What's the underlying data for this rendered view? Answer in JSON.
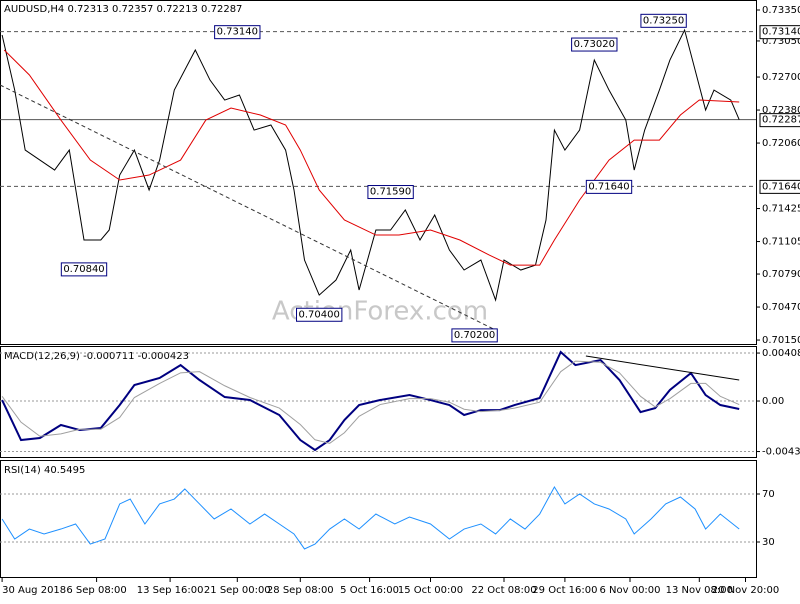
{
  "watermark": "ActionForex.com",
  "chart_data": [
    {
      "type": "line",
      "title": "AUDUSD,H4  0.72313 0.72357 0.72213 0.72287",
      "xlim": [
        0,
        360
      ],
      "ylim": [
        0.70102,
        0.73447
      ],
      "grid": false,
      "yticks": [
        {
          "value": 0.7335,
          "label": "0.73350"
        },
        {
          "value": 0.7305,
          "label": "0.73050"
        },
        {
          "value": 0.727,
          "label": "0.72700"
        },
        {
          "value": 0.7238,
          "label": "0.72380"
        },
        {
          "value": 0.7206,
          "label": "0.72060"
        },
        {
          "value": 0.71425,
          "label": "0.71425"
        },
        {
          "value": 0.71105,
          "label": "0.71105"
        },
        {
          "value": 0.7079,
          "label": "0.70790"
        },
        {
          "value": 0.7047,
          "label": "0.70470"
        },
        {
          "value": 0.7015,
          "label": "0.70150"
        }
      ],
      "series": [
        {
          "color": "#000000",
          "x": [
            1,
            7,
            12,
            19,
            26,
            33,
            40,
            48,
            52,
            57,
            64,
            71,
            76,
            83,
            93,
            100,
            107,
            114,
            121,
            129,
            136,
            140,
            145,
            152,
            160,
            167,
            171,
            179,
            186,
            193,
            200,
            207,
            214,
            221,
            229,
            236,
            240,
            248,
            255,
            260,
            264,
            269,
            276,
            283,
            290,
            298,
            302,
            307,
            314,
            319,
            326,
            331,
            336,
            340,
            348,
            352
          ],
          "values": [
            0.73108,
            0.72574,
            0.71992,
            0.71895,
            0.71798,
            0.71992,
            0.7112,
            0.7112,
            0.71217,
            0.7175,
            0.71992,
            0.71605,
            0.71895,
            0.72574,
            0.72962,
            0.72671,
            0.72477,
            0.72526,
            0.72186,
            0.72235,
            0.71992,
            0.71605,
            0.70926,
            0.70586,
            0.70732,
            0.71023,
            0.70635,
            0.71217,
            0.71217,
            0.71411,
            0.7112,
            0.71362,
            0.71023,
            0.70829,
            0.70926,
            0.70538,
            0.70926,
            0.70829,
            0.70877,
            0.71314,
            0.72186,
            0.71992,
            0.72186,
            0.72865,
            0.72574,
            0.72283,
            0.71798,
            0.72186,
            0.72574,
            0.72865,
            0.73156,
            0.72768,
            0.7238,
            0.72574,
            0.72477,
            0.72287
          ]
        },
        {
          "color": "#e00000",
          "x": [
            2,
            14,
            29,
            43,
            57,
            71,
            86,
            98,
            110,
            124,
            136,
            143,
            152,
            164,
            179,
            190,
            205,
            219,
            233,
            243,
            257,
            264,
            276,
            290,
            302,
            314,
            324,
            333,
            352
          ],
          "values": [
            0.72962,
            0.7272,
            0.72283,
            0.71895,
            0.71702,
            0.7175,
            0.71895,
            0.72283,
            0.724,
            0.72332,
            0.72235,
            0.71992,
            0.71605,
            0.71314,
            0.71168,
            0.71168,
            0.71217,
            0.7112,
            0.70974,
            0.70877,
            0.70877,
            0.7112,
            0.71508,
            0.71895,
            0.72089,
            0.72089,
            0.72332,
            0.72477,
            0.72458
          ]
        },
        {
          "color": "#333333",
          "style": "dashed",
          "x": [
            0,
            236
          ],
          "values": [
            0.72623,
            0.70247
          ]
        }
      ],
      "levels": [
        {
          "value": 0.7314,
          "label": "0.73140"
        },
        {
          "value": 0.7164,
          "label": "0.71640"
        },
        {
          "value": 0.72287,
          "label": "0.72287"
        }
      ],
      "annotations": [
        {
          "x": 113,
          "value": 0.7314,
          "label": "0.73140"
        },
        {
          "x": 40,
          "value": 0.7084,
          "label": "0.70840"
        },
        {
          "x": 152,
          "value": 0.704,
          "label": "0.70400"
        },
        {
          "x": 186,
          "value": 0.7159,
          "label": "0.71590"
        },
        {
          "x": 226,
          "value": 0.702,
          "label": "0.70200"
        },
        {
          "x": 283,
          "value": 0.7302,
          "label": "0.73020"
        },
        {
          "x": 316,
          "value": 0.7325,
          "label": "0.73250"
        },
        {
          "x": 290,
          "value": 0.7164,
          "label": "0.71640"
        }
      ]
    },
    {
      "type": "line",
      "title": "MACD(12,26,9) -0.000711 -0.000423",
      "xlim": [
        0,
        360
      ],
      "ylim": [
        -0.00485,
        0.0046
      ],
      "grid": true,
      "yticks": [
        0.004085,
        {
          "value": 0,
          "label": "0.00"
        },
        -0.0043
      ],
      "series": [
        {
          "color": "#000080",
          "x": [
            1,
            10,
            19,
            29,
            38,
            48,
            57,
            64,
            76,
            86,
            95,
            107,
            119,
            133,
            143,
            150,
            157,
            164,
            171,
            181,
            195,
            205,
            214,
            221,
            229,
            238,
            245,
            257,
            267,
            274,
            286,
            295,
            305,
            312,
            319,
            329,
            336,
            343,
            352
          ],
          "values": [
            8.5e-05,
            -0.00332,
            -0.00315,
            -0.00204,
            -0.00247,
            -0.0023,
            -0.00034,
            0.00136,
            0.00196,
            0.00306,
            0.00179,
            0.00034,
            8.5e-05,
            -0.00119,
            -0.00332,
            -0.00417,
            -0.00332,
            -0.00162,
            -0.00034,
            8.5e-05,
            0.00051,
            8.5e-05,
            -0.00034,
            -0.00119,
            -0.00077,
            -0.00077,
            -0.00034,
            0.00026,
            0.00417,
            0.00306,
            0.00349,
            0.00179,
            -0.00094,
            -0.0006,
            0.00094,
            0.00238,
            0.00051,
            -0.00034,
            -0.00068
          ]
        },
        {
          "color": "#a0a0a0",
          "x": [
            1,
            10,
            19,
            29,
            38,
            48,
            57,
            64,
            76,
            86,
            95,
            107,
            119,
            133,
            143,
            150,
            157,
            164,
            171,
            181,
            195,
            205,
            214,
            221,
            229,
            238,
            245,
            257,
            267,
            274,
            286,
            295,
            305,
            312,
            319,
            329,
            336,
            343,
            352
          ],
          "values": [
            0.0004,
            -0.0018,
            -0.003,
            -0.0028,
            -0.0024,
            -0.0024,
            -0.0014,
            0.0003,
            0.0015,
            0.0024,
            0.0025,
            0.0013,
            0.0003,
            -0.0006,
            -0.002,
            -0.0033,
            -0.0036,
            -0.0027,
            -0.0013,
            -0.0003,
            0.0002,
            0.0002,
            -0.0001,
            -0.0007,
            -0.0009,
            -0.0008,
            -0.0006,
            -0.0001,
            0.0025,
            0.0034,
            0.0033,
            0.0024,
            0.0004,
            -0.0005,
            0.0002,
            0.0015,
            0.0015,
            0.0004,
            -0.0003
          ]
        },
        {
          "color": "#000000",
          "x": [
            279,
            352
          ],
          "values": [
            0.00383,
            0.00179
          ]
        }
      ]
    },
    {
      "type": "line",
      "title": "RSI(14) 40.5495",
      "xlim": [
        0,
        360
      ],
      "ylim": [
        0,
        97.5
      ],
      "grid": true,
      "yticks": [
        70,
        30
      ],
      "xticks": [
        {
          "value": 1,
          "label": "30 Aug 2018"
        },
        {
          "value": 46,
          "label": "6 Sep 08:00"
        },
        {
          "value": 81,
          "label": "13 Sep 16:00"
        },
        {
          "value": 113,
          "label": "21 Sep 00:00"
        },
        {
          "value": 143,
          "label": "28 Sep 08:00"
        },
        {
          "value": 176,
          "label": "5 Oct 16:00"
        },
        {
          "value": 205,
          "label": "15 Oct 00:00"
        },
        {
          "value": 240,
          "label": "22 Oct 08:00"
        },
        {
          "value": 269,
          "label": "29 Oct 16:00"
        },
        {
          "value": 300,
          "label": "6 Nov 00:00"
        },
        {
          "value": 333,
          "label": "13 Nov 08:00"
        },
        {
          "value": 355,
          "label": "20 Nov 20:00"
        }
      ],
      "series": [
        {
          "color": "#1e90ff",
          "x": [
            1,
            7,
            14,
            21,
            29,
            36,
            43,
            50,
            57,
            62,
            69,
            76,
            83,
            88,
            95,
            102,
            110,
            119,
            126,
            133,
            140,
            145,
            150,
            157,
            164,
            171,
            179,
            188,
            195,
            205,
            214,
            221,
            229,
            236,
            243,
            250,
            257,
            264,
            269,
            276,
            283,
            290,
            298,
            302,
            310,
            317,
            324,
            331,
            336,
            343,
            352
          ],
          "values": [
            49.2,
            32.5,
            40.8,
            36.7,
            40.8,
            45,
            28.3,
            32.5,
            61.7,
            65.8,
            45,
            61.7,
            65.8,
            74.2,
            61.7,
            49.2,
            57.5,
            45,
            53.3,
            45,
            36.7,
            24.2,
            28.3,
            40.8,
            49.2,
            40.8,
            53.3,
            45,
            50.8,
            45,
            32.5,
            40.8,
            45,
            36.7,
            49.2,
            40.8,
            53.3,
            75.8,
            61.7,
            70,
            61.7,
            57.5,
            49.2,
            36.7,
            49.2,
            61.7,
            67.5,
            57.5,
            40.8,
            53.3,
            40.8
          ]
        }
      ]
    }
  ]
}
